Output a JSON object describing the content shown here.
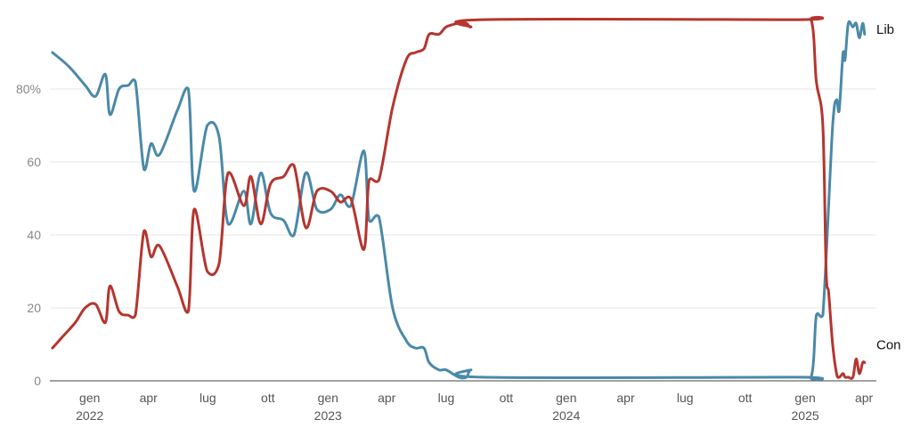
{
  "chart_data": {
    "type": "line",
    "ylim": [
      0,
      100
    ],
    "y_ticks": [
      {
        "value": 0,
        "label": "0"
      },
      {
        "value": 20,
        "label": "20"
      },
      {
        "value": 40,
        "label": "40"
      },
      {
        "value": 60,
        "label": "60"
      },
      {
        "value": 80,
        "label": "80%"
      }
    ],
    "xlim": [
      "2021-11-01",
      "2025-04-20"
    ],
    "x_ticks": [
      {
        "date": "2022-01-01",
        "label": "gen",
        "year": "2022"
      },
      {
        "date": "2022-04-01",
        "label": "apr",
        "year": ""
      },
      {
        "date": "2022-07-01",
        "label": "lug",
        "year": ""
      },
      {
        "date": "2022-10-01",
        "label": "ott",
        "year": ""
      },
      {
        "date": "2023-01-01",
        "label": "gen",
        "year": "2023"
      },
      {
        "date": "2023-04-01",
        "label": "apr",
        "year": ""
      },
      {
        "date": "2023-07-01",
        "label": "lug",
        "year": ""
      },
      {
        "date": "2023-10-01",
        "label": "ott",
        "year": ""
      },
      {
        "date": "2024-01-01",
        "label": "gen",
        "year": "2024"
      },
      {
        "date": "2024-04-01",
        "label": "apr",
        "year": ""
      },
      {
        "date": "2024-07-01",
        "label": "lug",
        "year": ""
      },
      {
        "date": "2024-10-01",
        "label": "ott",
        "year": ""
      },
      {
        "date": "2025-01-01",
        "label": "gen",
        "year": "2025"
      },
      {
        "date": "2025-04-01",
        "label": "apr",
        "year": ""
      }
    ],
    "grid": true,
    "series": [
      {
        "name": "Lib",
        "color": "#4a89a8",
        "points": [
          [
            "2021-11-05",
            90
          ],
          [
            "2021-12-01",
            86
          ],
          [
            "2021-12-25",
            81
          ],
          [
            "2022-01-10",
            78
          ],
          [
            "2022-01-25",
            84
          ],
          [
            "2022-02-01",
            73
          ],
          [
            "2022-02-15",
            80
          ],
          [
            "2022-03-01",
            81
          ],
          [
            "2022-03-12",
            82
          ],
          [
            "2022-03-25",
            58
          ],
          [
            "2022-04-05",
            65
          ],
          [
            "2022-04-18",
            62
          ],
          [
            "2022-05-15",
            74
          ],
          [
            "2022-06-01",
            80
          ],
          [
            "2022-06-10",
            52
          ],
          [
            "2022-06-30",
            70
          ],
          [
            "2022-07-18",
            67
          ],
          [
            "2022-08-01",
            43
          ],
          [
            "2022-08-25",
            52
          ],
          [
            "2022-09-05",
            43
          ],
          [
            "2022-09-20",
            57
          ],
          [
            "2022-10-05",
            46
          ],
          [
            "2022-10-25",
            44
          ],
          [
            "2022-11-10",
            40
          ],
          [
            "2022-11-28",
            57
          ],
          [
            "2022-12-15",
            47
          ],
          [
            "2023-01-05",
            47
          ],
          [
            "2023-01-20",
            51
          ],
          [
            "2023-02-05",
            48
          ],
          [
            "2023-02-25",
            63
          ],
          [
            "2023-03-05",
            44
          ],
          [
            "2023-03-20",
            45
          ],
          [
            "2023-04-10",
            20
          ],
          [
            "2023-05-01",
            11
          ],
          [
            "2023-05-15",
            9
          ],
          [
            "2023-05-28",
            9
          ],
          [
            "2023-06-05",
            5
          ],
          [
            "2023-06-20",
            3
          ],
          [
            "2023-07-01",
            3
          ],
          [
            "2023-07-20",
            1
          ],
          [
            "2023-08-01",
            1
          ],
          [
            "2023-08-08",
            3
          ],
          [
            "2023-08-25",
            1
          ],
          [
            "2024-12-15",
            1
          ],
          [
            "2025-01-10",
            1
          ],
          [
            "2025-01-18",
            18
          ],
          [
            "2025-01-28",
            18
          ],
          [
            "2025-02-12",
            70
          ],
          [
            "2025-02-18",
            77
          ],
          [
            "2025-02-22",
            74
          ],
          [
            "2025-02-28",
            90
          ],
          [
            "2025-03-03",
            88
          ],
          [
            "2025-03-08",
            98
          ],
          [
            "2025-03-15",
            97
          ],
          [
            "2025-03-20",
            98
          ],
          [
            "2025-03-25",
            94
          ],
          [
            "2025-03-30",
            98
          ],
          [
            "2025-04-02",
            95
          ]
        ]
      },
      {
        "name": "Con",
        "color": "#b5352e",
        "points": [
          [
            "2021-11-05",
            9
          ],
          [
            "2021-11-20",
            12
          ],
          [
            "2021-12-10",
            16
          ],
          [
            "2021-12-25",
            20
          ],
          [
            "2022-01-10",
            21
          ],
          [
            "2022-01-25",
            16
          ],
          [
            "2022-02-01",
            26
          ],
          [
            "2022-02-15",
            19
          ],
          [
            "2022-03-01",
            18
          ],
          [
            "2022-03-12",
            18
          ],
          [
            "2022-03-25",
            41
          ],
          [
            "2022-04-05",
            34
          ],
          [
            "2022-04-18",
            37
          ],
          [
            "2022-05-15",
            26
          ],
          [
            "2022-06-01",
            19
          ],
          [
            "2022-06-10",
            47
          ],
          [
            "2022-06-30",
            30
          ],
          [
            "2022-07-18",
            32
          ],
          [
            "2022-08-01",
            57
          ],
          [
            "2022-08-25",
            48
          ],
          [
            "2022-09-05",
            56
          ],
          [
            "2022-09-20",
            43
          ],
          [
            "2022-10-05",
            54
          ],
          [
            "2022-10-25",
            56
          ],
          [
            "2022-11-10",
            59
          ],
          [
            "2022-11-28",
            42
          ],
          [
            "2022-12-15",
            52
          ],
          [
            "2023-01-05",
            52
          ],
          [
            "2023-01-20",
            49
          ],
          [
            "2023-02-05",
            50
          ],
          [
            "2023-02-25",
            36
          ],
          [
            "2023-03-05",
            55
          ],
          [
            "2023-03-20",
            55
          ],
          [
            "2023-04-10",
            75
          ],
          [
            "2023-05-01",
            88
          ],
          [
            "2023-05-15",
            90
          ],
          [
            "2023-05-28",
            91
          ],
          [
            "2023-06-05",
            95
          ],
          [
            "2023-06-20",
            95
          ],
          [
            "2023-07-01",
            97
          ],
          [
            "2023-07-20",
            98
          ],
          [
            "2023-08-01",
            98
          ],
          [
            "2023-08-08",
            97
          ],
          [
            "2023-08-25",
            99
          ],
          [
            "2024-12-15",
            99
          ],
          [
            "2025-01-10",
            99
          ],
          [
            "2025-01-18",
            82
          ],
          [
            "2025-01-28",
            70
          ],
          [
            "2025-02-02",
            30
          ],
          [
            "2025-02-06",
            24
          ],
          [
            "2025-02-12",
            10
          ],
          [
            "2025-02-18",
            2
          ],
          [
            "2025-02-22",
            1
          ],
          [
            "2025-02-28",
            2
          ],
          [
            "2025-03-03",
            1
          ],
          [
            "2025-03-08",
            1
          ],
          [
            "2025-03-15",
            1
          ],
          [
            "2025-03-20",
            6
          ],
          [
            "2025-03-25",
            2
          ],
          [
            "2025-03-30",
            5
          ],
          [
            "2025-04-02",
            5
          ]
        ]
      }
    ]
  }
}
